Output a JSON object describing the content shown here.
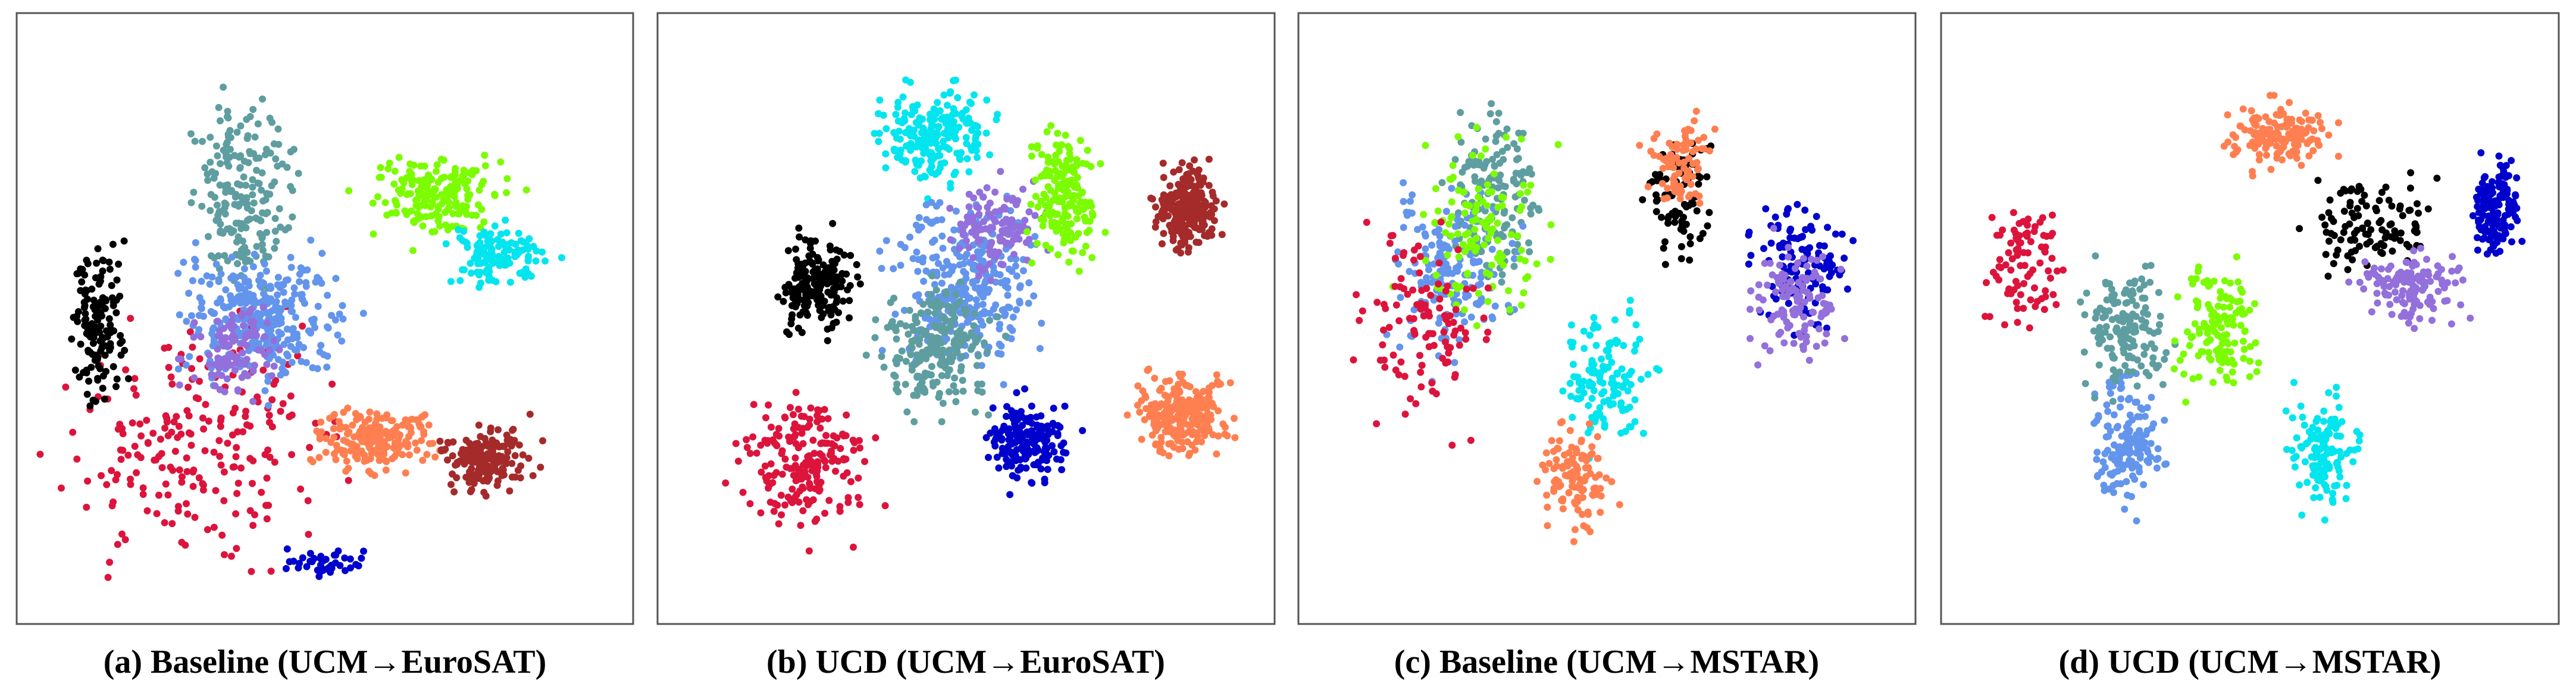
{
  "panels": [
    {
      "caption": "(a) Baseline (UCM→EuroSAT)"
    },
    {
      "caption": "(b) UCD  (UCM→EuroSAT)"
    },
    {
      "caption": "(c) Baseline (UCM→MSTAR)"
    },
    {
      "caption": "(d) UCD  (UCM→MSTAR)"
    }
  ]
}
